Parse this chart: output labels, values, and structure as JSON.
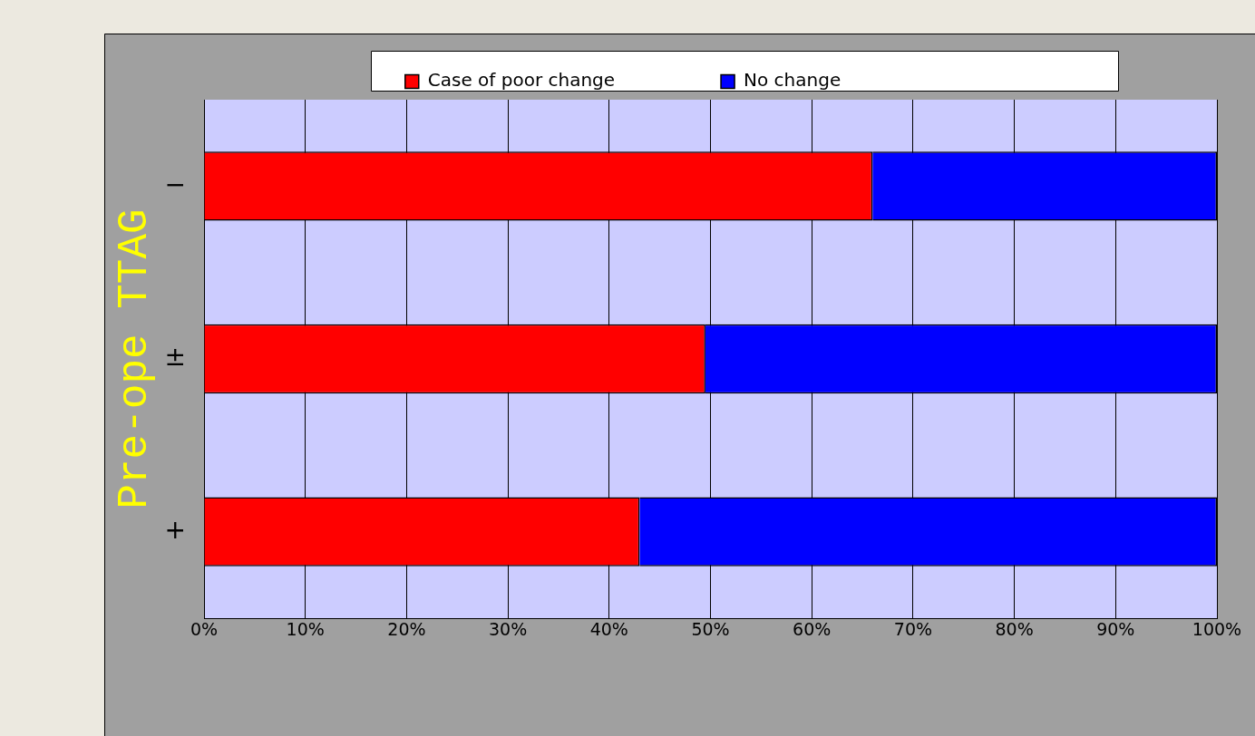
{
  "chart_data": {
    "type": "bar",
    "orientation": "horizontal",
    "stacked": true,
    "ylabel": "Pre-ope TTAG",
    "categories": [
      "−",
      "±",
      "+"
    ],
    "series": [
      {
        "name": "Case of poor change",
        "color": "#ff0000",
        "values": [
          66,
          49.5,
          43
        ]
      },
      {
        "name": "No change",
        "color": "#0000ff",
        "values": [
          34,
          50.5,
          57
        ]
      }
    ],
    "xlim": [
      0,
      100
    ],
    "xticks": [
      {
        "value": 0,
        "label": "0%"
      },
      {
        "value": 10,
        "label": "10%"
      },
      {
        "value": 20,
        "label": "20%"
      },
      {
        "value": 30,
        "label": "30%"
      },
      {
        "value": 40,
        "label": "40%"
      },
      {
        "value": 50,
        "label": "50%"
      },
      {
        "value": 60,
        "label": "60%"
      },
      {
        "value": 70,
        "label": "70%"
      },
      {
        "value": 80,
        "label": "80%"
      },
      {
        "value": 90,
        "label": "90%"
      },
      {
        "value": 100,
        "label": "100%"
      }
    ],
    "grid": "x",
    "legend": "top"
  }
}
